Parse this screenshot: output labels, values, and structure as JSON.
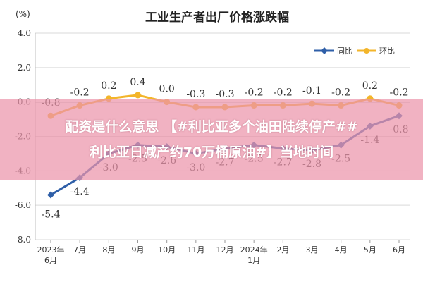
{
  "colors": {
    "yoy": "#2f5fa8",
    "mom": "#f3b52a",
    "grid": "#d9d9d9",
    "axis": "#bfbfbf",
    "overlay": "#ec94aa"
  },
  "overlay": {
    "line1": "配资是什么意思 【#利比亚多个油田陆续停产##",
    "line2": "利比亚日减产约70万桶原油#】当地时间"
  },
  "chart_data": {
    "type": "line",
    "title": "工业生产者出厂价格涨跌幅",
    "unit_label": "(%)",
    "ylim": [
      -8.0,
      4.0
    ],
    "yticks": [
      "4.0",
      "2.0",
      "0.0",
      "-2.0",
      "-4.0",
      "-6.0",
      "-8.0"
    ],
    "categories": [
      "2023年6月",
      "7月",
      "8月",
      "9月",
      "10月",
      "11月",
      "12月",
      "2024年1月",
      "2月",
      "3月",
      "4月",
      "5月",
      "6月"
    ],
    "x_tick_lines": [
      [
        "2023年",
        "6月"
      ],
      [
        "7月"
      ],
      [
        "8月"
      ],
      [
        "9月"
      ],
      [
        "10月"
      ],
      [
        "11月"
      ],
      [
        "12月"
      ],
      [
        "2024年",
        "1月"
      ],
      [
        "2月"
      ],
      [
        "3月"
      ],
      [
        "4月"
      ],
      [
        "5月"
      ],
      [
        "6月"
      ]
    ],
    "grid": true,
    "legend_position": "top-right",
    "series": [
      {
        "name": "同比",
        "color": "#2f5fa8",
        "values": [
          -5.4,
          -4.4,
          -3.0,
          -2.5,
          -2.6,
          -3.0,
          -2.7,
          -2.5,
          -2.7,
          -2.8,
          -2.5,
          -1.4,
          -0.8
        ],
        "labels": [
          "-5.4",
          "-4.4",
          "-3.0",
          "-2.5",
          "-2.6",
          "-3.0",
          "-2.7",
          "-2.5",
          "-2.7",
          "-2.8",
          "-2.5",
          "-1.4",
          "-0.8"
        ]
      },
      {
        "name": "环比",
        "color": "#f3b52a",
        "values": [
          -0.8,
          -0.2,
          0.2,
          0.4,
          0.0,
          -0.3,
          -0.3,
          -0.2,
          -0.2,
          -0.1,
          -0.2,
          0.2,
          -0.2
        ],
        "labels": [
          "-0.8",
          "-0.2",
          "0.2",
          "0.4",
          "0.0",
          "-0.3",
          "-0.3",
          "-0.2",
          "-0.2",
          "-0.1",
          "-0.2",
          "0.2",
          "-0.2"
        ]
      }
    ]
  }
}
